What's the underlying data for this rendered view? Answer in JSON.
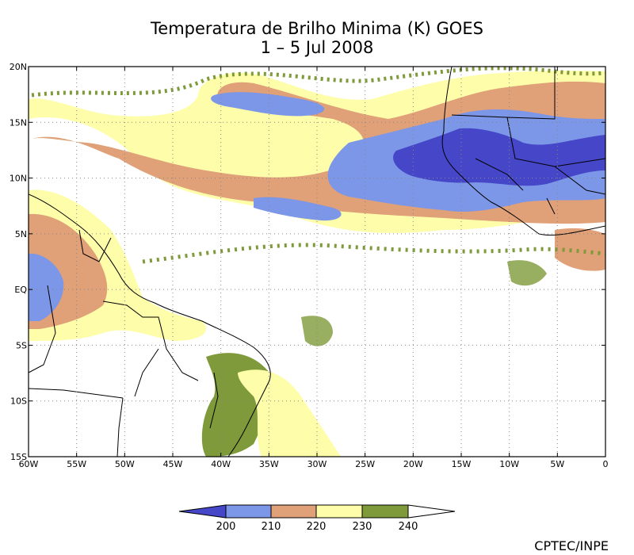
{
  "title": {
    "line1": "Temperatura de Brilho Minima (K) GOES",
    "line2": "1 – 5 Jul 2008"
  },
  "axes": {
    "lat_labels": [
      "20N",
      "15N",
      "10N",
      "5N",
      "EQ",
      "5S",
      "10S",
      "15S"
    ],
    "lat_values": [
      20,
      15,
      10,
      5,
      0,
      -5,
      -10,
      -15
    ],
    "lon_labels": [
      "60W",
      "55W",
      "50W",
      "45W",
      "40W",
      "35W",
      "30W",
      "25W",
      "20W",
      "15W",
      "10W",
      "5W",
      "0"
    ],
    "lon_values": [
      -60,
      -55,
      -50,
      -45,
      -40,
      -35,
      -30,
      -25,
      -20,
      -15,
      -10,
      -5,
      0
    ],
    "lon_range": [
      -60,
      0
    ],
    "lat_range": [
      -15,
      20
    ],
    "grid": true
  },
  "colorbar": {
    "labels": [
      "200",
      "210",
      "220",
      "230",
      "240"
    ],
    "colors": [
      "#4646c8",
      "#7c96e8",
      "#e0a078",
      "#fefeaa",
      "#7e9a3a",
      "#ffffff"
    ]
  },
  "credit": "CPTEC/INPE"
}
